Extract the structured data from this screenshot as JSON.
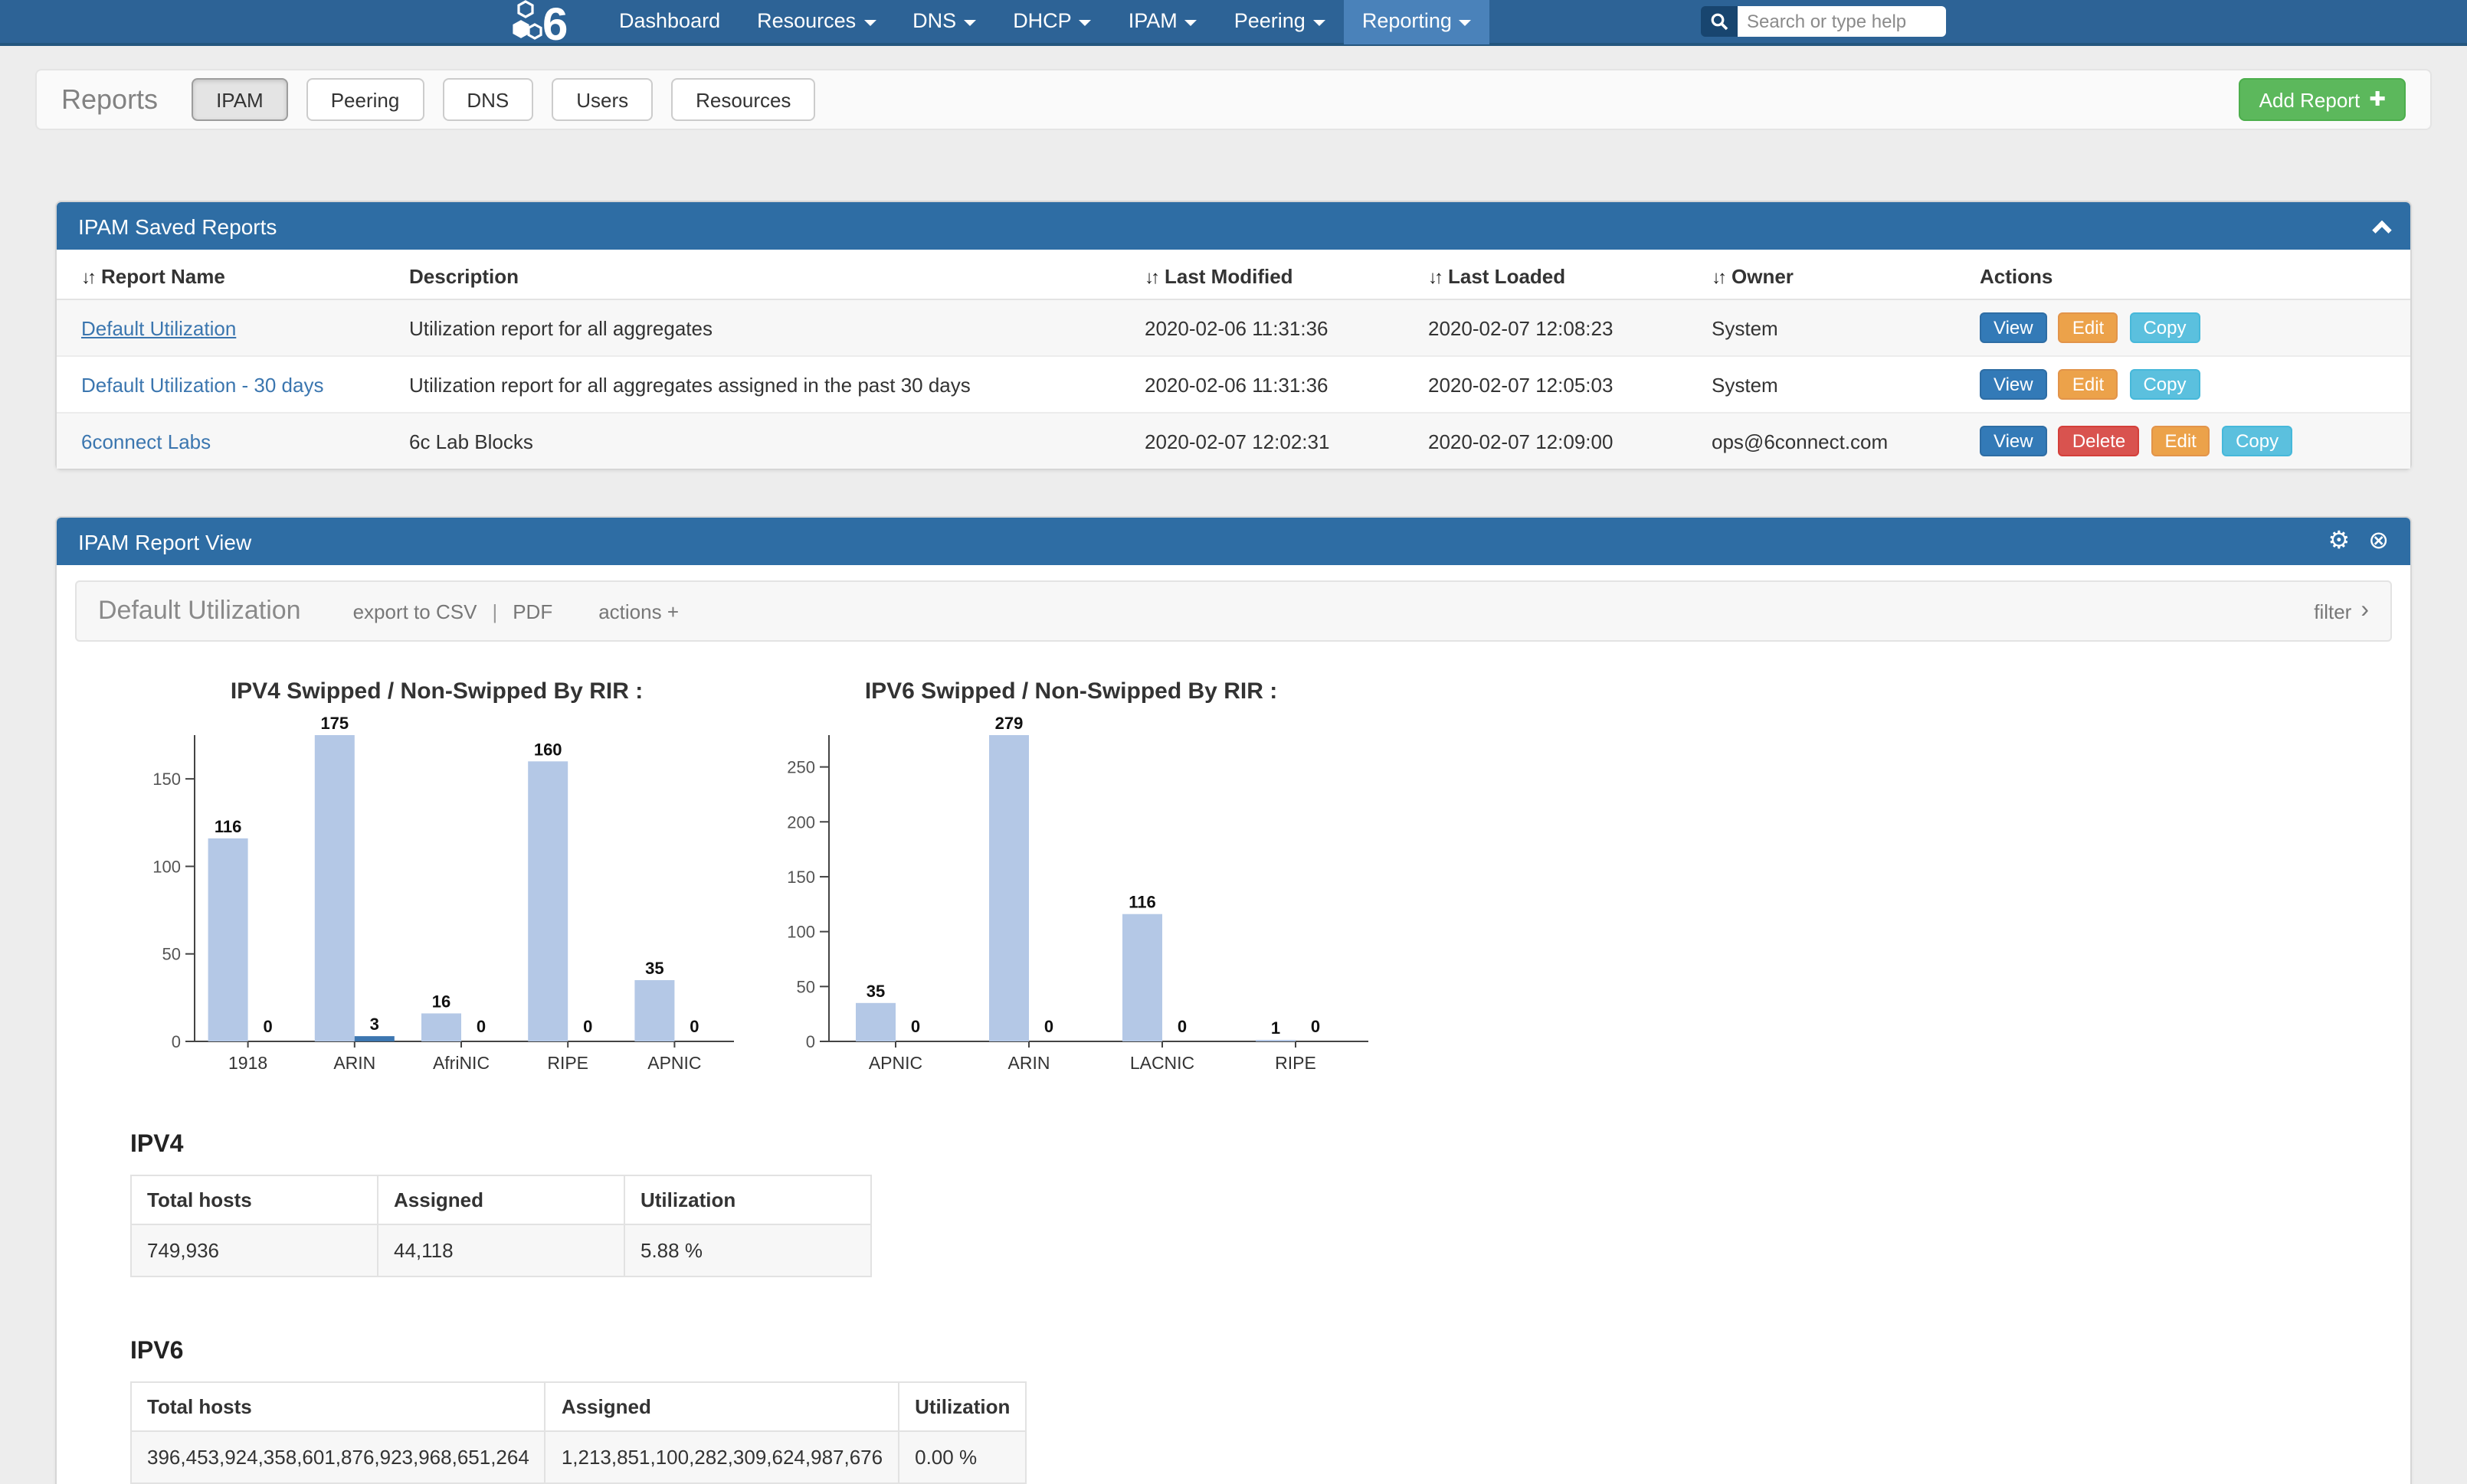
{
  "nav": {
    "brand": "6",
    "items": [
      {
        "label": "Dashboard",
        "dropdown": false,
        "active": false
      },
      {
        "label": "Resources",
        "dropdown": true,
        "active": false
      },
      {
        "label": "DNS",
        "dropdown": true,
        "active": false
      },
      {
        "label": "DHCP",
        "dropdown": true,
        "active": false
      },
      {
        "label": "IPAM",
        "dropdown": true,
        "active": false
      },
      {
        "label": "Peering",
        "dropdown": true,
        "active": false
      },
      {
        "label": "Reporting",
        "dropdown": true,
        "active": true
      }
    ],
    "search": {
      "placeholder": "Search or type help"
    }
  },
  "reports_bar": {
    "title": "Reports",
    "tabs": [
      {
        "label": "IPAM",
        "active": true
      },
      {
        "label": "Peering",
        "active": false
      },
      {
        "label": "DNS",
        "active": false
      },
      {
        "label": "Users",
        "active": false
      },
      {
        "label": "Resources",
        "active": false
      }
    ],
    "add_button_label": "Add Report"
  },
  "saved_reports": {
    "panel_title": "IPAM Saved Reports",
    "columns": [
      {
        "label": "Report Name",
        "sortable": true
      },
      {
        "label": "Description",
        "sortable": false
      },
      {
        "label": "Last Modified",
        "sortable": true
      },
      {
        "label": "Last Loaded",
        "sortable": true
      },
      {
        "label": "Owner",
        "sortable": true
      },
      {
        "label": "Actions",
        "sortable": false
      }
    ],
    "rows": [
      {
        "name": "Default Utilization",
        "description": "Utilization report for all aggregates",
        "last_modified": "2020-02-06 11:31:36",
        "last_loaded": "2020-02-07 12:08:23",
        "owner": "System",
        "actions": [
          "View",
          "Edit",
          "Copy"
        ]
      },
      {
        "name": "Default Utilization - 30 days",
        "description": "Utilization report for all aggregates assigned in the past 30 days",
        "last_modified": "2020-02-06 11:31:36",
        "last_loaded": "2020-02-07 12:05:03",
        "owner": "System",
        "actions": [
          "View",
          "Edit",
          "Copy"
        ]
      },
      {
        "name": "6connect Labs",
        "description": "6c Lab Blocks",
        "last_modified": "2020-02-07 12:02:31",
        "last_loaded": "2020-02-07 12:09:00",
        "owner": "ops@6connect.com",
        "actions": [
          "View",
          "Delete",
          "Edit",
          "Copy"
        ]
      }
    ]
  },
  "report_view": {
    "panel_title": "IPAM Report View",
    "toolbar": {
      "title": "Default Utilization",
      "export_csv_label": "export to CSV",
      "separator": "|",
      "pdf_label": "PDF",
      "actions_label": "actions +",
      "filter_label": "filter"
    },
    "ipv4_section": {
      "heading": "IPV4",
      "columns": [
        "Total hosts",
        "Assigned",
        "Utilization"
      ],
      "row": [
        "749,936",
        "44,118",
        "5.88 %"
      ]
    },
    "ipv6_section": {
      "heading": "IPV6",
      "columns": [
        "Total hosts",
        "Assigned",
        "Utilization"
      ],
      "row": [
        "396,453,924,358,601,876,923,968,651,264",
        "1,213,851,100,282,309,624,987,676",
        "0.00 %"
      ]
    }
  },
  "chart_data": [
    {
      "type": "bar",
      "title": "IPV4 Swipped / Non-Swipped By RIR :",
      "categories": [
        "1918",
        "ARIN",
        "AfriNIC",
        "RIPE",
        "APNIC"
      ],
      "series": [
        {
          "name": "Swipped",
          "color": "#b4c8e6",
          "values": [
            116,
            175,
            16,
            160,
            35
          ]
        },
        {
          "name": "Non-Swipped",
          "color": "#3c76b0",
          "values": [
            0,
            3,
            0,
            0,
            0
          ]
        }
      ],
      "ylim": [
        0,
        175
      ],
      "yticks": [
        0,
        50,
        100,
        150
      ],
      "grid": false,
      "legend": "none"
    },
    {
      "type": "bar",
      "title": "IPV6 Swipped / Non-Swipped By RIR :",
      "categories": [
        "APNIC",
        "ARIN",
        "LACNIC",
        "RIPE"
      ],
      "series": [
        {
          "name": "Swipped",
          "color": "#b4c8e6",
          "values": [
            35,
            279,
            116,
            1
          ]
        },
        {
          "name": "Non-Swipped",
          "color": "#3c76b0",
          "values": [
            0,
            0,
            0,
            0
          ]
        }
      ],
      "ylim": [
        0,
        279
      ],
      "yticks": [
        0,
        50,
        100,
        150,
        200,
        250
      ],
      "grid": false,
      "legend": "none"
    }
  ],
  "icons": {
    "sort": "↓↑",
    "gear": "⚙",
    "close": "⊗",
    "add_plus": "✚",
    "filter_chevron": "›"
  },
  "colors": {
    "navbar": "#2d6396",
    "navbar_active": "#4a82ba",
    "panel_header": "#2e6da4",
    "add_green": "#5cb85c",
    "btn_view": "#337ab7",
    "btn_edit": "#eca24a",
    "btn_copy": "#5bc0de",
    "btn_delete": "#d9534f",
    "link": "#3b76af",
    "bar_light": "#b4c8e6",
    "bar_dark": "#3c76b0"
  }
}
